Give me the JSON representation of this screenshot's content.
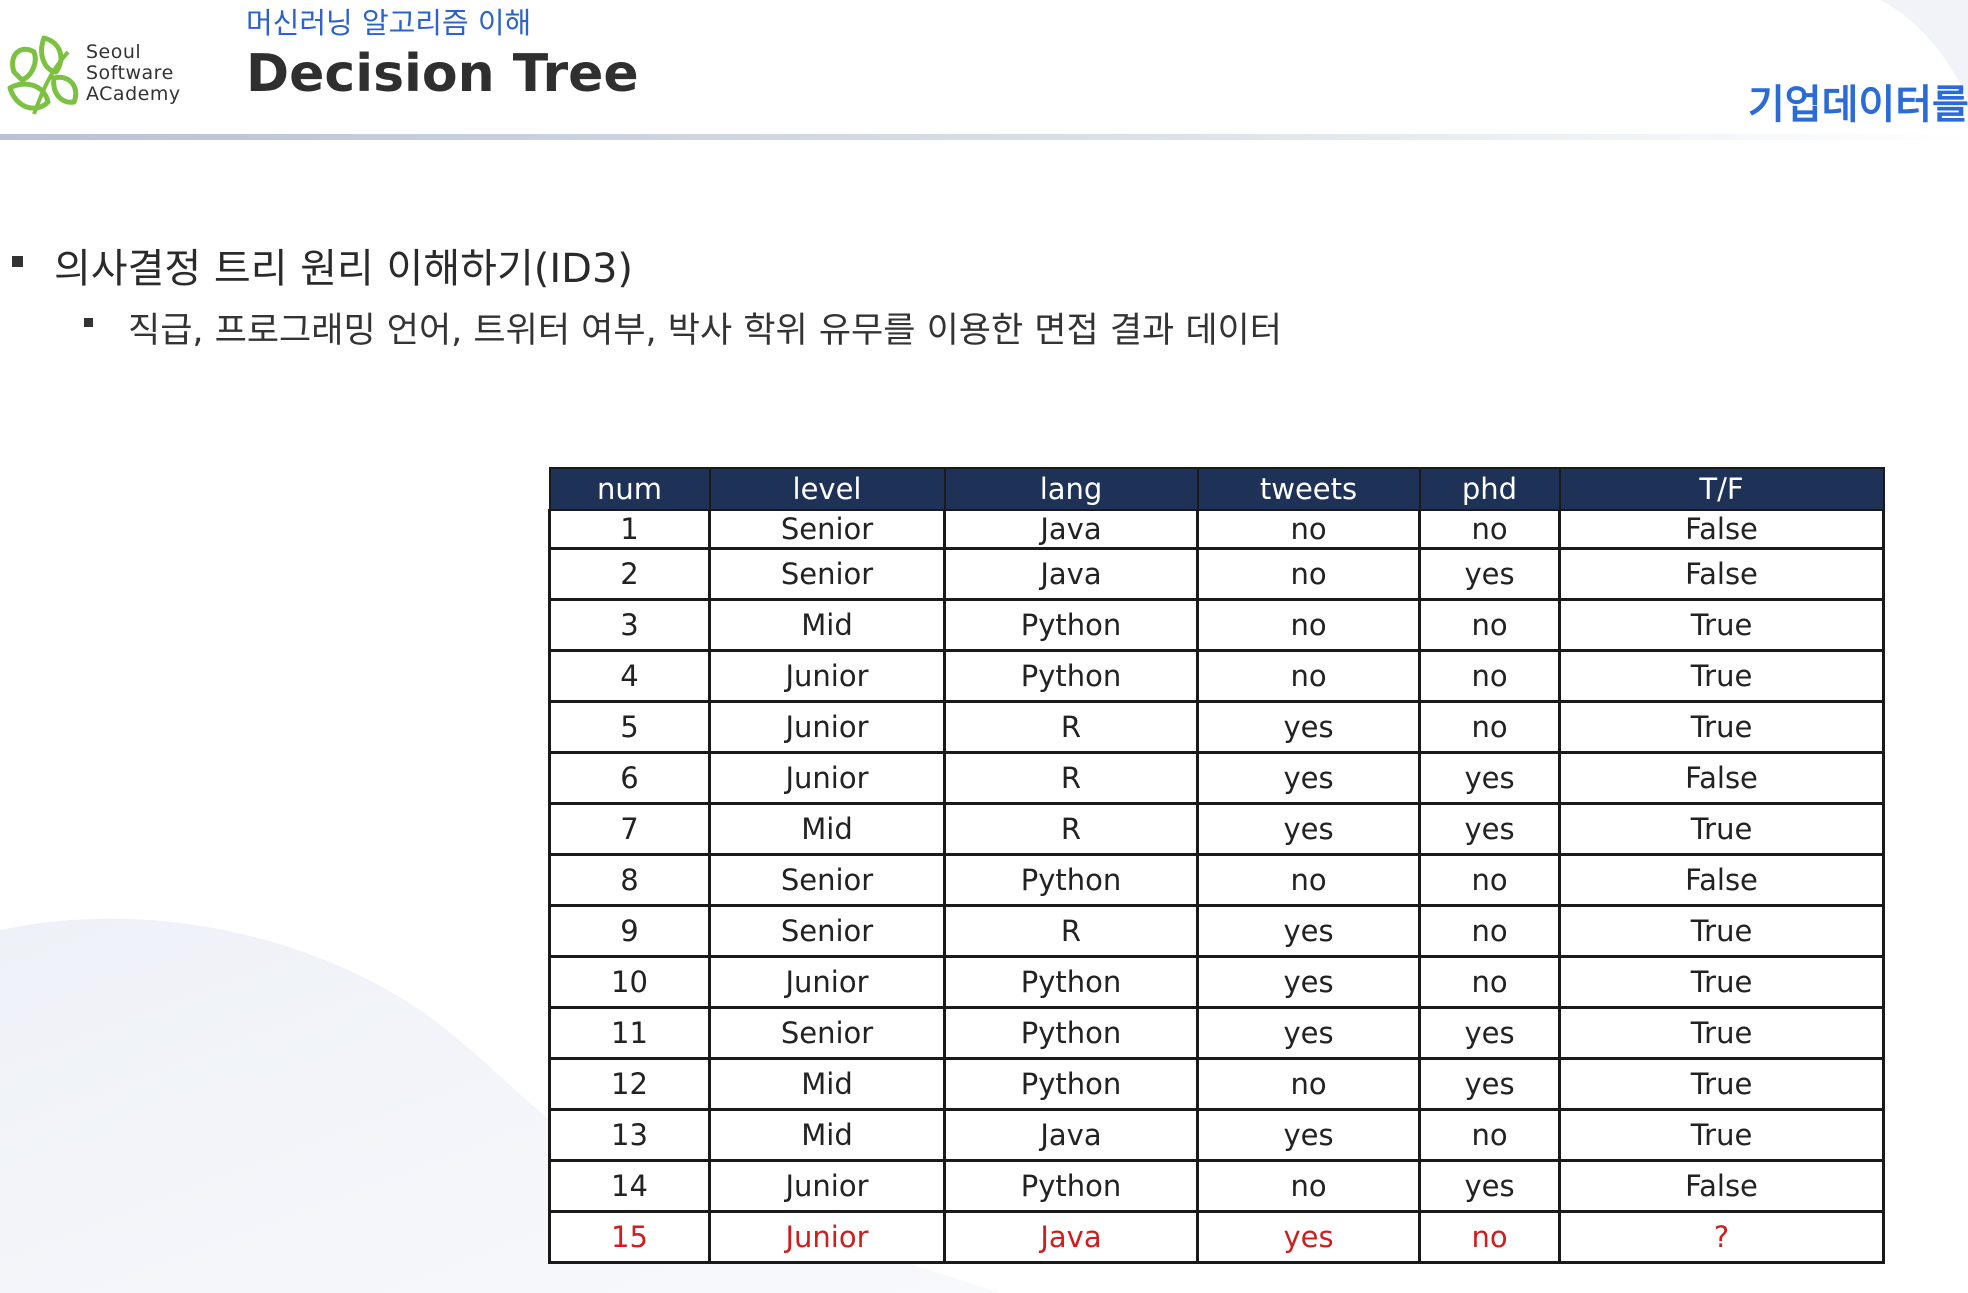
{
  "header": {
    "logo_lines": [
      "Seoul",
      "Software",
      "ACademy"
    ],
    "course_title": "머신러닝 알고리즘 이해",
    "page_title": "Decision Tree",
    "corner_banner": "기업데이터를"
  },
  "bullets": {
    "main": "의사결정 트리 원리 이해하기(ID3)",
    "sub": "직급, 프로그래밍 언어, 트위터 여부, 박사 학위 유무를 이용한 면접 결과 데이터"
  },
  "colors": {
    "table_header_bg": "#1e3257",
    "highlight_row_text": "#cc1f1f",
    "course_title": "#2d63c8"
  },
  "table": {
    "columns": [
      "num",
      "level",
      "lang",
      "tweets",
      "phd",
      "T/F"
    ],
    "rows": [
      [
        "1",
        "Senior",
        "Java",
        "no",
        "no",
        "False"
      ],
      [
        "2",
        "Senior",
        "Java",
        "no",
        "yes",
        "False"
      ],
      [
        "3",
        "Mid",
        "Python",
        "no",
        "no",
        "True"
      ],
      [
        "4",
        "Junior",
        "Python",
        "no",
        "no",
        "True"
      ],
      [
        "5",
        "Junior",
        "R",
        "yes",
        "no",
        "True"
      ],
      [
        "6",
        "Junior",
        "R",
        "yes",
        "yes",
        "False"
      ],
      [
        "7",
        "Mid",
        "R",
        "yes",
        "yes",
        "True"
      ],
      [
        "8",
        "Senior",
        "Python",
        "no",
        "no",
        "False"
      ],
      [
        "9",
        "Senior",
        "R",
        "yes",
        "no",
        "True"
      ],
      [
        "10",
        "Junior",
        "Python",
        "yes",
        "no",
        "True"
      ],
      [
        "11",
        "Senior",
        "Python",
        "yes",
        "yes",
        "True"
      ],
      [
        "12",
        "Mid",
        "Python",
        "no",
        "yes",
        "True"
      ],
      [
        "13",
        "Mid",
        "Java",
        "yes",
        "no",
        "True"
      ],
      [
        "14",
        "Junior",
        "Python",
        "no",
        "yes",
        "False"
      ],
      [
        "15",
        "Junior",
        "Java",
        "yes",
        "no",
        "?"
      ]
    ],
    "highlighted_row": 15
  }
}
